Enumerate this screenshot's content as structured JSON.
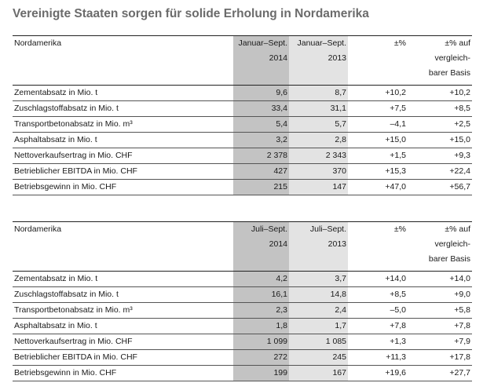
{
  "title": "Vereinigte Staaten sorgen für solide Erholung in Nordamerika",
  "tables": [
    {
      "header": {
        "label": "Nordamerika",
        "cur_line1": "Januar–Sept.",
        "cur_line2": "2014",
        "prev_line1": "Januar–Sept.",
        "prev_line2": "2013",
        "pct": "±%",
        "cmp_line1": "±% auf",
        "cmp_line2": "vergleich-",
        "cmp_line3": "barer Basis"
      },
      "rows": [
        {
          "label": "Zementabsatz in Mio. t",
          "cur": "9,6",
          "prev": "8,7",
          "pct": "+10,2",
          "cmp": "+10,2"
        },
        {
          "label": "Zuschlagstoffabsatz in Mio. t",
          "cur": "33,4",
          "prev": "31,1",
          "pct": "+7,5",
          "cmp": "+8,5"
        },
        {
          "label": "Transportbetonabsatz in Mio. m³",
          "cur": "5,4",
          "prev": "5,7",
          "pct": "–4,1",
          "cmp": "+2,5"
        },
        {
          "label": "Asphaltabsatz in Mio. t",
          "cur": "3,2",
          "prev": "2,8",
          "pct": "+15,0",
          "cmp": "+15,0"
        },
        {
          "label": "Nettoverkaufsertrag in Mio. CHF",
          "cur": "2 378",
          "prev": "2 343",
          "pct": "+1,5",
          "cmp": "+9,3"
        },
        {
          "label": "Betrieblicher EBITDA in Mio. CHF",
          "cur": "427",
          "prev": "370",
          "pct": "+15,3",
          "cmp": "+22,4"
        },
        {
          "label": "Betriebsgewinn in Mio. CHF",
          "cur": "215",
          "prev": "147",
          "pct": "+47,0",
          "cmp": "+56,7"
        }
      ]
    },
    {
      "header": {
        "label": "Nordamerika",
        "cur_line1": "Juli–Sept.",
        "cur_line2": "2014",
        "prev_line1": "Juli–Sept.",
        "prev_line2": "2013",
        "pct": "±%",
        "cmp_line1": "±% auf",
        "cmp_line2": "vergleich-",
        "cmp_line3": "barer Basis"
      },
      "rows": [
        {
          "label": "Zementabsatz in Mio. t",
          "cur": "4,2",
          "prev": "3,7",
          "pct": "+14,0",
          "cmp": "+14,0"
        },
        {
          "label": "Zuschlagstoffabsatz in Mio. t",
          "cur": "16,1",
          "prev": "14,8",
          "pct": "+8,5",
          "cmp": "+9,0"
        },
        {
          "label": "Transportbetonabsatz in Mio. m³",
          "cur": "2,3",
          "prev": "2,4",
          "pct": "–5,0",
          "cmp": "+5,8"
        },
        {
          "label": "Asphaltabsatz in Mio. t",
          "cur": "1,8",
          "prev": "1,7",
          "pct": "+7,8",
          "cmp": "+7,8"
        },
        {
          "label": "Nettoverkaufsertrag in Mio. CHF",
          "cur": "1 099",
          "prev": "1 085",
          "pct": "+1,3",
          "cmp": "+7,9"
        },
        {
          "label": "Betrieblicher EBITDA in Mio. CHF",
          "cur": "272",
          "prev": "245",
          "pct": "+11,3",
          "cmp": "+17,8"
        },
        {
          "label": "Betriebsgewinn in Mio. CHF",
          "cur": "199",
          "prev": "167",
          "pct": "+19,6",
          "cmp": "+27,7"
        }
      ]
    }
  ]
}
